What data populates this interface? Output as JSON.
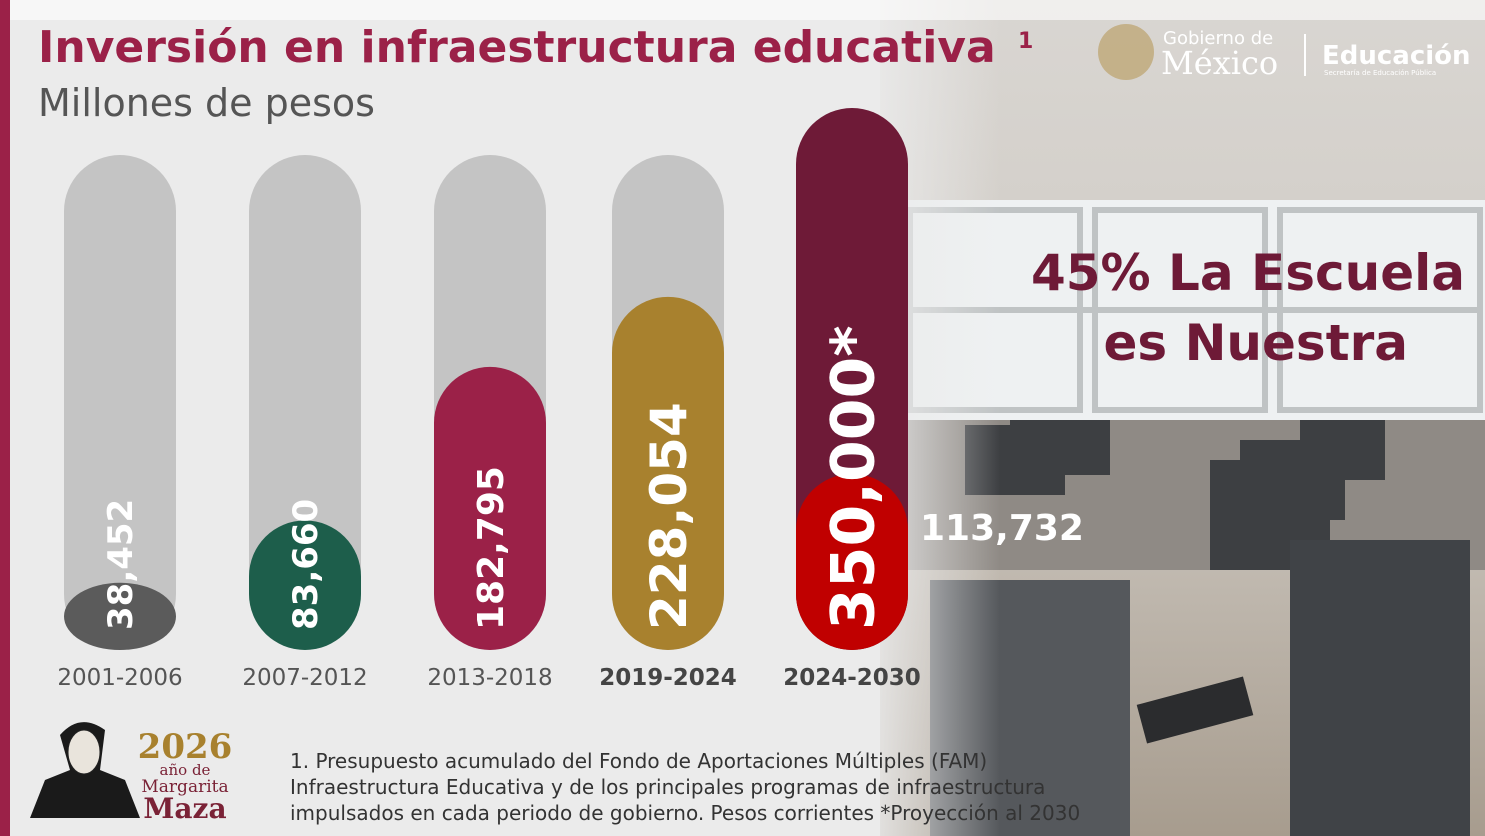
{
  "chart_data": {
    "type": "bar",
    "title": "Inversión en infraestructura educativa",
    "title_note": "1",
    "subtitle": "Millones de pesos",
    "categories": [
      "2001-2006",
      "2007-2012",
      "2013-2018",
      "2019-2024",
      "2024-2030"
    ],
    "values": [
      38452,
      83660,
      182795,
      228054,
      350000
    ],
    "value_labels": [
      "38,452",
      "83,660",
      "182,795",
      "228,054",
      "350,000*"
    ],
    "colors": [
      "#5b5b5b",
      "#1d5e4b",
      "#9b2148",
      "#a8812e",
      "#6e1a37"
    ],
    "overlay": {
      "category": 4,
      "value": 113732,
      "value_label": "113,732",
      "color": "#c00000"
    },
    "annotation": [
      "45% La Escuela",
      "es Nuestra"
    ],
    "footnote": [
      "1. Presupuesto acumulado del Fondo de Aportaciones Múltiples (FAM)",
      "Infraestructura Educativa y de los principales programas de infraestructura",
      "impulsados en cada periodo de gobierno. Pesos corrientes *Proyección al 2030"
    ],
    "logo": {
      "top": "Gobierno de",
      "main": "México",
      "dept": "Educación",
      "dept_sub": "Secretaría de Educación Pública"
    },
    "badge": {
      "year": "2026",
      "line1": "año de",
      "line2": "Margarita",
      "line3": "Maza"
    }
  }
}
